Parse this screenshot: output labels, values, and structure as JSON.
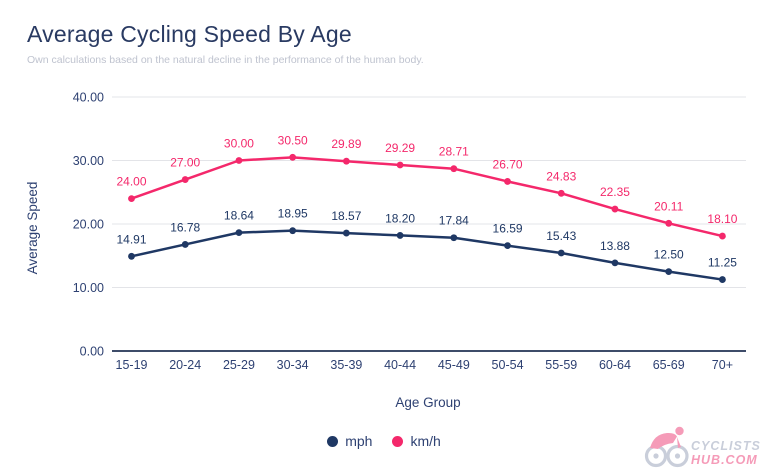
{
  "colors": {
    "title": "#293A62",
    "subtitle": "#BFC3CF",
    "axis_text": "#2E4172",
    "grid": "#E3E4E8",
    "baseline": "#3E4C69",
    "logo_gray": "#C9CEDA",
    "logo_pink": "#F59BB8"
  },
  "chart_data": {
    "type": "line",
    "title": "Average Cycling Speed By Age",
    "subtitle": "Own calculations based on the natural decline in the performance of the human body.",
    "xlabel": "Age Group",
    "ylabel": "Average Speed",
    "categories": [
      "15-19",
      "20-24",
      "25-29",
      "30-34",
      "35-39",
      "40-44",
      "45-49",
      "50-54",
      "55-59",
      "60-64",
      "65-69",
      "70+"
    ],
    "y_ticks": [
      "0.00",
      "10.00",
      "20.00",
      "30.00",
      "40.00"
    ],
    "ylim": [
      0,
      40
    ],
    "grid": "horizontal",
    "legend_position": "bottom",
    "markers": true,
    "data_labels": true,
    "series": [
      {
        "name": "mph",
        "color": "#1F3864",
        "values": [
          14.91,
          16.78,
          18.64,
          18.95,
          18.57,
          18.2,
          17.84,
          16.59,
          15.43,
          13.88,
          12.5,
          11.25
        ]
      },
      {
        "name": "km/h",
        "color": "#F4286B",
        "values": [
          24.0,
          27.0,
          30.0,
          30.5,
          29.89,
          29.29,
          28.71,
          26.7,
          24.83,
          22.35,
          20.11,
          18.1
        ]
      }
    ]
  },
  "logo": {
    "brand_line1": "CYCLISTS",
    "brand_line2": "HUB.COM"
  }
}
